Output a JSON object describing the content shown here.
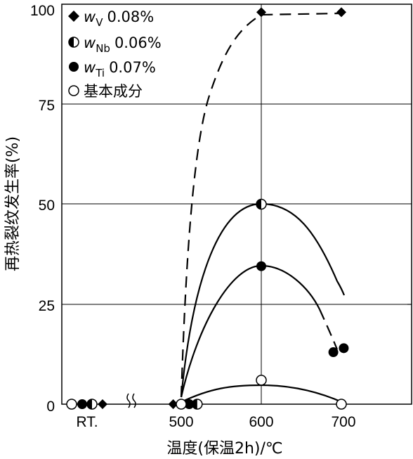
{
  "chart_data": {
    "type": "scatter",
    "ylabel": "再热裂纹发生率(%)",
    "xlabel": "温度(保温2h)/℃",
    "ylim": [
      0,
      100
    ],
    "y_ticks": [
      "0",
      "25",
      "50",
      "75",
      "100"
    ],
    "x_ticks": [
      "RT.",
      "500",
      "600",
      "700"
    ],
    "grid": true,
    "legend_position": "top-left",
    "series": [
      {
        "symbol": "diamond",
        "legend": {
          "base": "w",
          "sub": "V",
          "value": "0.08%"
        },
        "points": [
          {
            "x": "RT.",
            "y": 0
          },
          {
            "x": 490,
            "y": 0
          },
          {
            "x": 600,
            "y": 98
          },
          {
            "x": 700,
            "y": 98
          }
        ],
        "curve": "dashed"
      },
      {
        "symbol": "half-filled-circle",
        "legend": {
          "base": "w",
          "sub": "Nb",
          "value": "0.06%"
        },
        "points": [
          {
            "x": "RT.",
            "y": 0
          },
          {
            "x": 520,
            "y": 0
          },
          {
            "x": 600,
            "y": 50
          }
        ],
        "curve": "solid"
      },
      {
        "symbol": "filled-circle",
        "legend": {
          "base": "w",
          "sub": "Ti",
          "value": "0.07%"
        },
        "points": [
          {
            "x": "RT.",
            "y": 0
          },
          {
            "x": 510,
            "y": 0
          },
          {
            "x": 600,
            "y": 34.5
          },
          {
            "x": 690,
            "y": 13
          },
          {
            "x": 703,
            "y": 14
          }
        ],
        "curve": "dash-dot"
      },
      {
        "symbol": "open-circle",
        "legend": {
          "text": "基本成分"
        },
        "points": [
          {
            "x": "RT.",
            "y": 0
          },
          {
            "x": 500,
            "y": 0
          },
          {
            "x": 600,
            "y": 6
          },
          {
            "x": 700,
            "y": 0
          }
        ],
        "curve": "solid"
      }
    ]
  }
}
